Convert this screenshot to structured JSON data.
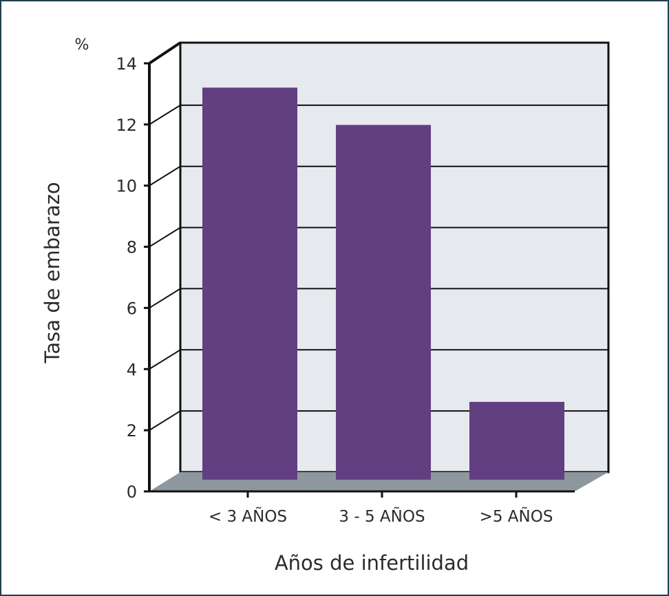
{
  "chart_data": {
    "type": "bar",
    "categories": [
      "< 3 AÑOS",
      "3 - 5 AÑOS",
      ">5 AÑOS"
    ],
    "values": [
      12.6,
      11.4,
      2.5
    ],
    "xlabel": "Años de infertilidad",
    "ylabel": "Tasa de embarazo",
    "unit": "%",
    "ylim": [
      0,
      14
    ],
    "yticks": [
      "0",
      "2",
      "4",
      "6",
      "8",
      "10",
      "12",
      "14"
    ],
    "grid": true,
    "colors": {
      "bar": "#623f80",
      "wall": "#e6e9ed",
      "floor": "#8c989e",
      "frame": "#1f3f50",
      "axis": "#111111"
    }
  }
}
